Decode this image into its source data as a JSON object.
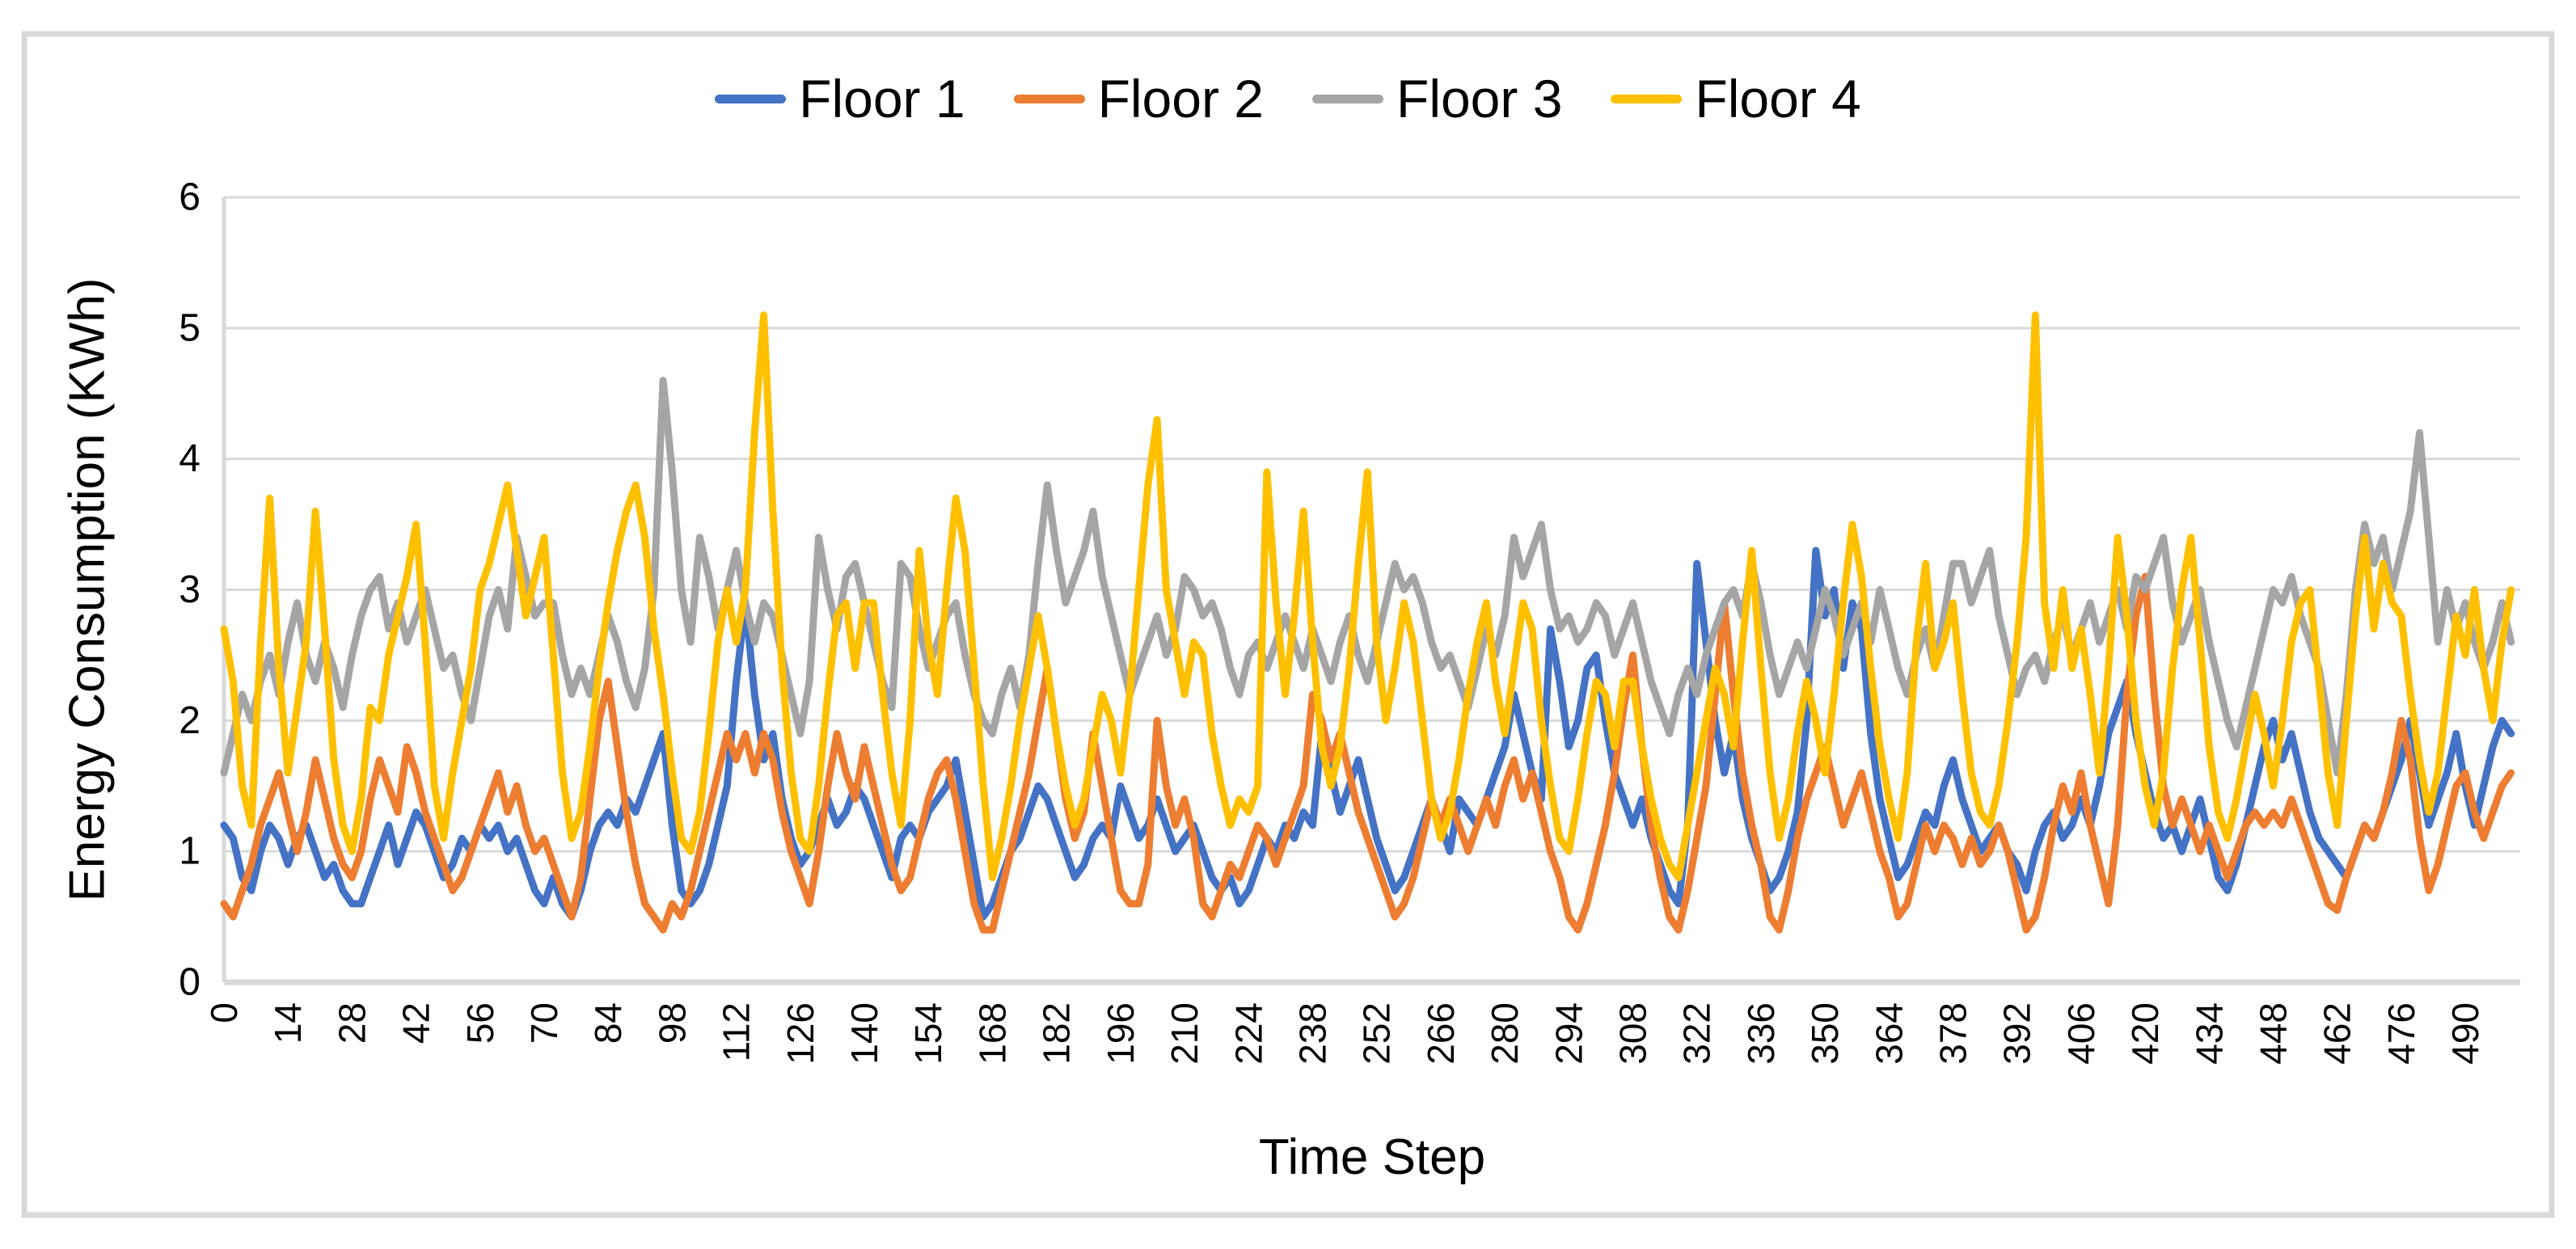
{
  "legend": {
    "items": [
      {
        "label": "Floor 1",
        "color": "#4472C4"
      },
      {
        "label": "Floor 2",
        "color": "#ED7D31"
      },
      {
        "label": "Floor 3",
        "color": "#A5A5A5"
      },
      {
        "label": "Floor 4",
        "color": "#FFC000"
      }
    ]
  },
  "axes": {
    "y_title": "Energy Consumption (KWh)",
    "x_title": "Time Step",
    "y_ticks": [
      0,
      1,
      2,
      3,
      4,
      5,
      6
    ],
    "x_ticks": [
      0,
      14,
      28,
      42,
      56,
      70,
      84,
      98,
      112,
      126,
      140,
      154,
      168,
      182,
      196,
      210,
      224,
      238,
      252,
      266,
      280,
      294,
      308,
      322,
      336,
      350,
      364,
      378,
      392,
      406,
      420,
      434,
      448,
      462,
      476,
      490
    ]
  },
  "style_colors": {
    "gridline": "#D9D9D9",
    "axis_line": "#D9D9D9",
    "figure_border": "#D9D9D9",
    "text": "#000000"
  },
  "chart_data": {
    "type": "line",
    "title": "",
    "xlabel": "Time Step",
    "ylabel": "Energy Consumption (KWh)",
    "ylim": [
      0,
      6
    ],
    "x_domain": [
      0,
      502
    ],
    "x_tick_interval": 14,
    "grid": true,
    "legend_position": "top",
    "x_start": 0,
    "x_interval": 2,
    "series": [
      {
        "name": "Floor 1",
        "color": "#4472C4",
        "values": [
          1.2,
          1.1,
          0.8,
          0.7,
          1.0,
          1.2,
          1.1,
          0.9,
          1.1,
          1.2,
          1.0,
          0.8,
          0.9,
          0.7,
          0.6,
          0.6,
          0.8,
          1.0,
          1.2,
          0.9,
          1.1,
          1.3,
          1.2,
          1.0,
          0.8,
          0.9,
          1.1,
          1.0,
          1.2,
          1.1,
          1.2,
          1.0,
          1.1,
          0.9,
          0.7,
          0.6,
          0.8,
          0.6,
          0.5,
          0.7,
          1.0,
          1.2,
          1.3,
          1.2,
          1.4,
          1.3,
          1.5,
          1.7,
          1.9,
          1.2,
          0.7,
          0.6,
          0.7,
          0.9,
          1.2,
          1.5,
          2.3,
          2.9,
          2.2,
          1.7,
          1.9,
          1.4,
          1.1,
          0.9,
          1.0,
          1.2,
          1.4,
          1.2,
          1.3,
          1.5,
          1.4,
          1.2,
          1.0,
          0.8,
          1.1,
          1.2,
          1.1,
          1.3,
          1.4,
          1.5,
          1.7,
          1.3,
          0.9,
          0.5,
          0.6,
          0.8,
          1.0,
          1.1,
          1.3,
          1.5,
          1.4,
          1.2,
          1.0,
          0.8,
          0.9,
          1.1,
          1.2,
          1.1,
          1.5,
          1.3,
          1.1,
          1.2,
          1.4,
          1.2,
          1.0,
          1.1,
          1.2,
          1.0,
          0.8,
          0.7,
          0.8,
          0.6,
          0.7,
          0.9,
          1.1,
          1.0,
          1.2,
          1.1,
          1.3,
          1.2,
          1.9,
          1.6,
          1.3,
          1.5,
          1.7,
          1.4,
          1.1,
          0.9,
          0.7,
          0.8,
          1.0,
          1.2,
          1.4,
          1.2,
          1.0,
          1.4,
          1.3,
          1.2,
          1.4,
          1.6,
          1.8,
          2.2,
          1.9,
          1.6,
          1.4,
          2.7,
          2.3,
          1.8,
          2.0,
          2.4,
          2.5,
          2.0,
          1.6,
          1.4,
          1.2,
          1.4,
          1.1,
          0.9,
          0.7,
          0.6,
          1.2,
          3.2,
          2.6,
          2.0,
          1.6,
          1.9,
          1.4,
          1.1,
          0.9,
          0.7,
          0.8,
          1.0,
          1.3,
          2.0,
          3.3,
          2.8,
          3.0,
          2.4,
          2.9,
          2.7,
          1.9,
          1.4,
          1.1,
          0.8,
          0.9,
          1.1,
          1.3,
          1.2,
          1.5,
          1.7,
          1.4,
          1.2,
          1.0,
          1.1,
          1.2,
          1.0,
          0.9,
          0.7,
          1.0,
          1.2,
          1.3,
          1.1,
          1.2,
          1.4,
          1.2,
          1.5,
          1.9,
          2.1,
          2.3,
          1.9,
          1.6,
          1.3,
          1.1,
          1.2,
          1.0,
          1.2,
          1.4,
          1.1,
          0.8,
          0.7,
          0.9,
          1.2,
          1.5,
          1.8,
          2.0,
          1.7,
          1.9,
          1.6,
          1.3,
          1.1,
          1.0,
          0.9,
          0.8,
          1.0,
          1.2,
          1.1,
          1.3,
          1.5,
          1.7,
          2.0,
          1.6,
          1.2,
          1.4,
          1.6,
          1.9,
          1.5,
          1.2,
          1.5,
          1.8,
          2.0,
          1.9
        ]
      },
      {
        "name": "Floor 2",
        "color": "#ED7D31",
        "values": [
          0.6,
          0.5,
          0.7,
          0.9,
          1.2,
          1.4,
          1.6,
          1.3,
          1.0,
          1.3,
          1.7,
          1.4,
          1.1,
          0.9,
          0.8,
          1.0,
          1.4,
          1.7,
          1.5,
          1.3,
          1.8,
          1.6,
          1.3,
          1.1,
          0.9,
          0.7,
          0.8,
          1.0,
          1.2,
          1.4,
          1.6,
          1.3,
          1.5,
          1.2,
          1.0,
          1.1,
          0.9,
          0.7,
          0.5,
          0.8,
          1.4,
          2.0,
          2.3,
          1.8,
          1.3,
          0.9,
          0.6,
          0.5,
          0.4,
          0.6,
          0.5,
          0.7,
          1.0,
          1.3,
          1.6,
          1.9,
          1.7,
          1.9,
          1.6,
          1.9,
          1.7,
          1.3,
          1.0,
          0.8,
          0.6,
          1.0,
          1.5,
          1.9,
          1.6,
          1.4,
          1.8,
          1.5,
          1.2,
          0.9,
          0.7,
          0.8,
          1.1,
          1.4,
          1.6,
          1.7,
          1.4,
          1.0,
          0.6,
          0.4,
          0.4,
          0.7,
          1.0,
          1.3,
          1.6,
          2.0,
          2.4,
          1.9,
          1.4,
          1.1,
          1.3,
          1.9,
          1.5,
          1.1,
          0.7,
          0.6,
          0.6,
          0.9,
          2.0,
          1.5,
          1.2,
          1.4,
          1.1,
          0.6,
          0.5,
          0.7,
          0.9,
          0.8,
          1.0,
          1.2,
          1.1,
          0.9,
          1.1,
          1.3,
          1.5,
          2.2,
          2.0,
          1.7,
          1.9,
          1.6,
          1.3,
          1.1,
          0.9,
          0.7,
          0.5,
          0.6,
          0.8,
          1.1,
          1.4,
          1.2,
          1.4,
          1.2,
          1.0,
          1.2,
          1.4,
          1.2,
          1.5,
          1.7,
          1.4,
          1.6,
          1.3,
          1.0,
          0.8,
          0.5,
          0.4,
          0.6,
          0.9,
          1.2,
          1.6,
          2.1,
          2.5,
          1.8,
          1.2,
          0.8,
          0.5,
          0.4,
          0.7,
          1.1,
          1.5,
          2.2,
          2.9,
          2.2,
          1.6,
          1.2,
          0.9,
          0.5,
          0.4,
          0.7,
          1.1,
          1.4,
          1.6,
          1.8,
          1.5,
          1.2,
          1.4,
          1.6,
          1.3,
          1.0,
          0.8,
          0.5,
          0.6,
          0.9,
          1.2,
          1.0,
          1.2,
          1.1,
          0.9,
          1.1,
          0.9,
          1.0,
          1.2,
          1.0,
          0.7,
          0.4,
          0.5,
          0.8,
          1.2,
          1.5,
          1.3,
          1.6,
          1.2,
          0.9,
          0.6,
          1.2,
          2.2,
          2.8,
          3.1,
          2.2,
          1.5,
          1.2,
          1.4,
          1.2,
          1.0,
          1.2,
          1.0,
          0.8,
          1.0,
          1.2,
          1.3,
          1.2,
          1.3,
          1.2,
          1.4,
          1.2,
          1.0,
          0.8,
          0.6,
          0.55,
          0.8,
          1.0,
          1.2,
          1.1,
          1.3,
          1.6,
          2.0,
          1.7,
          1.1,
          0.7,
          0.9,
          1.2,
          1.5,
          1.6,
          1.3,
          1.1,
          1.3,
          1.5,
          1.6
        ]
      },
      {
        "name": "Floor 3",
        "color": "#A5A5A5",
        "values": [
          1.6,
          1.9,
          2.2,
          2.0,
          2.3,
          2.5,
          2.2,
          2.6,
          2.9,
          2.5,
          2.3,
          2.6,
          2.4,
          2.1,
          2.5,
          2.8,
          3.0,
          3.1,
          2.7,
          2.9,
          2.6,
          2.8,
          3.0,
          2.7,
          2.4,
          2.5,
          2.2,
          2.0,
          2.4,
          2.8,
          3.0,
          2.7,
          3.4,
          3.1,
          2.8,
          2.9,
          2.9,
          2.5,
          2.2,
          2.4,
          2.2,
          2.5,
          2.8,
          2.6,
          2.3,
          2.1,
          2.4,
          3.0,
          4.6,
          3.9,
          3.0,
          2.6,
          3.4,
          3.1,
          2.7,
          3.0,
          3.3,
          2.9,
          2.6,
          2.9,
          2.8,
          2.5,
          2.2,
          1.9,
          2.3,
          3.4,
          3.0,
          2.7,
          3.1,
          3.2,
          2.9,
          2.6,
          2.3,
          2.1,
          3.2,
          3.1,
          2.7,
          2.4,
          2.6,
          2.8,
          2.9,
          2.5,
          2.2,
          2.0,
          1.9,
          2.2,
          2.4,
          2.1,
          2.5,
          3.2,
          3.8,
          3.3,
          2.9,
          3.1,
          3.3,
          3.6,
          3.1,
          2.8,
          2.5,
          2.2,
          2.4,
          2.6,
          2.8,
          2.5,
          2.7,
          3.1,
          3.0,
          2.8,
          2.9,
          2.7,
          2.4,
          2.2,
          2.5,
          2.6,
          2.4,
          2.6,
          2.8,
          2.6,
          2.4,
          2.7,
          2.5,
          2.3,
          2.6,
          2.8,
          2.5,
          2.3,
          2.6,
          2.9,
          3.2,
          3.0,
          3.1,
          2.9,
          2.6,
          2.4,
          2.5,
          2.3,
          2.1,
          2.4,
          2.7,
          2.5,
          2.8,
          3.4,
          3.1,
          3.3,
          3.5,
          3.0,
          2.7,
          2.8,
          2.6,
          2.7,
          2.9,
          2.8,
          2.5,
          2.7,
          2.9,
          2.6,
          2.3,
          2.1,
          1.9,
          2.2,
          2.4,
          2.2,
          2.5,
          2.7,
          2.9,
          3.0,
          2.8,
          3.2,
          2.9,
          2.5,
          2.2,
          2.4,
          2.6,
          2.4,
          2.7,
          3.0,
          2.8,
          2.5,
          2.7,
          2.9,
          2.6,
          3.0,
          2.7,
          2.4,
          2.2,
          2.5,
          2.7,
          2.4,
          2.8,
          3.2,
          3.2,
          2.9,
          3.1,
          3.3,
          2.8,
          2.5,
          2.2,
          2.4,
          2.5,
          2.3,
          2.6,
          2.8,
          2.5,
          2.7,
          2.9,
          2.6,
          2.8,
          3.0,
          2.7,
          3.1,
          3.0,
          3.2,
          3.4,
          2.9,
          2.6,
          2.8,
          3.0,
          2.6,
          2.3,
          2.0,
          1.8,
          2.1,
          2.4,
          2.7,
          3.0,
          2.9,
          3.1,
          2.8,
          2.6,
          2.4,
          2.0,
          1.6,
          2.2,
          3.0,
          3.5,
          3.2,
          3.4,
          3.0,
          3.3,
          3.6,
          4.2,
          3.4,
          2.6,
          3.0,
          2.7,
          2.9,
          2.6,
          2.4,
          2.6,
          2.9,
          2.6
        ]
      },
      {
        "name": "Floor 4",
        "color": "#FFC000",
        "values": [
          2.7,
          2.3,
          1.5,
          1.2,
          2.6,
          3.7,
          2.4,
          1.6,
          2.1,
          2.6,
          3.6,
          2.7,
          1.7,
          1.2,
          1.0,
          1.4,
          2.1,
          2.0,
          2.5,
          2.8,
          3.1,
          3.5,
          2.6,
          1.5,
          1.1,
          1.6,
          2.0,
          2.4,
          3.0,
          3.2,
          3.5,
          3.8,
          3.3,
          2.8,
          3.1,
          3.4,
          2.5,
          1.6,
          1.1,
          1.3,
          1.8,
          2.4,
          2.9,
          3.3,
          3.6,
          3.8,
          3.4,
          2.7,
          2.2,
          1.6,
          1.1,
          1.0,
          1.3,
          1.9,
          2.6,
          3.0,
          2.6,
          3.0,
          4.2,
          5.1,
          3.6,
          2.4,
          1.6,
          1.1,
          1.0,
          1.5,
          2.2,
          2.8,
          2.9,
          2.4,
          2.9,
          2.9,
          2.2,
          1.6,
          1.2,
          2.0,
          3.3,
          2.6,
          2.2,
          3.0,
          3.7,
          3.3,
          2.4,
          1.5,
          0.8,
          1.1,
          1.5,
          2.0,
          2.4,
          2.8,
          2.4,
          1.9,
          1.5,
          1.2,
          1.4,
          1.8,
          2.2,
          2.0,
          1.6,
          2.2,
          3.0,
          3.8,
          4.3,
          3.0,
          2.6,
          2.2,
          2.6,
          2.5,
          1.9,
          1.5,
          1.2,
          1.4,
          1.3,
          1.5,
          3.9,
          2.9,
          2.2,
          2.8,
          3.6,
          2.6,
          1.8,
          1.5,
          1.8,
          2.4,
          3.2,
          3.9,
          2.6,
          2.0,
          2.4,
          2.9,
          2.6,
          2.0,
          1.4,
          1.1,
          1.3,
          1.7,
          2.2,
          2.6,
          2.9,
          2.3,
          1.9,
          2.4,
          2.9,
          2.7,
          2.0,
          1.5,
          1.1,
          1.0,
          1.4,
          1.9,
          2.3,
          2.2,
          1.8,
          2.3,
          2.3,
          1.8,
          1.4,
          1.1,
          0.9,
          0.8,
          1.2,
          1.6,
          2.0,
          2.4,
          2.2,
          1.8,
          2.6,
          3.3,
          2.4,
          1.6,
          1.1,
          1.4,
          1.9,
          2.3,
          2.0,
          1.6,
          2.2,
          2.9,
          3.5,
          3.1,
          2.4,
          1.8,
          1.4,
          1.1,
          1.6,
          2.6,
          3.2,
          2.4,
          2.6,
          2.9,
          2.2,
          1.6,
          1.3,
          1.2,
          1.5,
          2.0,
          2.6,
          3.4,
          5.1,
          2.9,
          2.4,
          3.0,
          2.4,
          2.7,
          2.2,
          1.6,
          2.4,
          3.4,
          2.8,
          2.0,
          1.5,
          1.2,
          1.6,
          2.4,
          3.0,
          3.4,
          2.6,
          1.8,
          1.3,
          1.1,
          1.4,
          1.8,
          2.2,
          1.9,
          1.5,
          2.0,
          2.6,
          2.9,
          3.0,
          2.3,
          1.6,
          1.2,
          2.0,
          2.8,
          3.4,
          2.7,
          3.2,
          2.9,
          2.8,
          2.2,
          1.7,
          1.3,
          1.6,
          2.2,
          2.8,
          2.5,
          3.0,
          2.4,
          2.0,
          2.6,
          3.0
        ]
      }
    ]
  }
}
